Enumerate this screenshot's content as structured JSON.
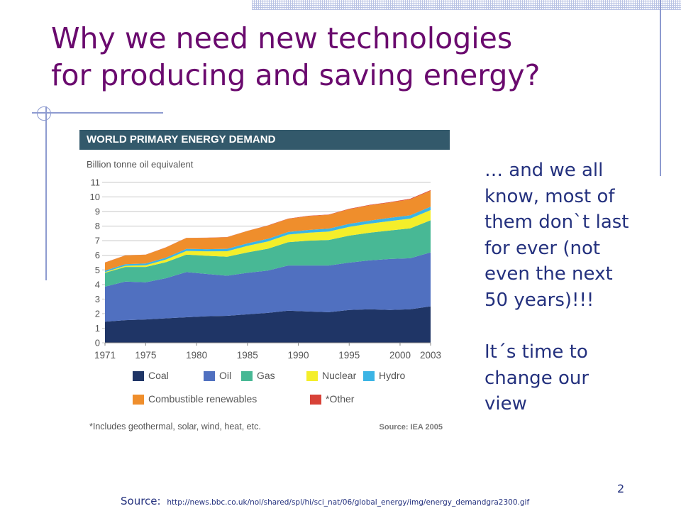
{
  "slide": {
    "title_line1": "Why we need new technologies",
    "title_line2": "for producing and saving energy?",
    "page_number": "2",
    "side_text": {
      "line1": "… and we all",
      "line2": "know, most of",
      "line3": "them don`t last",
      "line4": "for ever (not",
      "line5": "even the next",
      "line6": "50 years)!!!",
      "line7": "It´s time to",
      "line8": "change our",
      "line9": "view"
    },
    "source_label": "Source:",
    "source_url": "http://news.bbc.co.uk/nol/shared/spl/hi/sci_nat/06/global_energy/img/energy_demandgra2300.gif"
  },
  "chart_data": {
    "type": "area",
    "stacked": true,
    "title": "WORLD PRIMARY ENERGY DEMAND",
    "ylabel": "Billion tonne oil equivalent",
    "xlabel": "",
    "ylim": [
      0,
      11
    ],
    "yticks": [
      "0",
      "1",
      "2",
      "3",
      "4",
      "5",
      "6",
      "7",
      "8",
      "9",
      "10",
      "11"
    ],
    "xticks": [
      "1971",
      "1975",
      "1980",
      "1985",
      "1990",
      "1995",
      "2000",
      "2003"
    ],
    "x": [
      1971,
      1973,
      1975,
      1977,
      1979,
      1981,
      1983,
      1985,
      1987,
      1989,
      1991,
      1993,
      1995,
      1997,
      1999,
      2001,
      2003
    ],
    "series": [
      {
        "name": "Coal",
        "color": "#1f3566",
        "values": [
          1.45,
          1.55,
          1.6,
          1.68,
          1.75,
          1.82,
          1.85,
          1.95,
          2.05,
          2.2,
          2.15,
          2.1,
          2.25,
          2.3,
          2.25,
          2.3,
          2.5
        ]
      },
      {
        "name": "Oil",
        "color": "#5070c0",
        "values": [
          2.4,
          2.65,
          2.55,
          2.75,
          3.1,
          2.9,
          2.75,
          2.85,
          2.9,
          3.1,
          3.15,
          3.2,
          3.25,
          3.35,
          3.5,
          3.5,
          3.7
        ]
      },
      {
        "name": "Gas",
        "color": "#48b895",
        "values": [
          0.95,
          1.0,
          1.05,
          1.1,
          1.2,
          1.25,
          1.3,
          1.4,
          1.5,
          1.6,
          1.7,
          1.75,
          1.85,
          1.9,
          1.95,
          2.05,
          2.2
        ]
      },
      {
        "name": "Nuclear",
        "color": "#f4ee2a",
        "values": [
          0.05,
          0.08,
          0.12,
          0.18,
          0.25,
          0.3,
          0.38,
          0.45,
          0.5,
          0.52,
          0.55,
          0.58,
          0.6,
          0.62,
          0.65,
          0.67,
          0.7
        ]
      },
      {
        "name": "Hydro",
        "color": "#3bb4e5",
        "values": [
          0.1,
          0.11,
          0.12,
          0.13,
          0.14,
          0.15,
          0.16,
          0.17,
          0.18,
          0.18,
          0.19,
          0.2,
          0.21,
          0.21,
          0.22,
          0.22,
          0.23
        ]
      },
      {
        "name": "Combustible renewables",
        "color": "#ef8e2c",
        "values": [
          0.55,
          0.6,
          0.6,
          0.7,
          0.75,
          0.78,
          0.8,
          0.85,
          0.9,
          0.9,
          0.95,
          0.95,
          1.0,
          1.05,
          1.05,
          1.1,
          1.1
        ]
      },
      {
        "name": "*Other",
        "color": "#d84238",
        "values": [
          0.01,
          0.01,
          0.01,
          0.01,
          0.01,
          0.01,
          0.01,
          0.01,
          0.02,
          0.02,
          0.02,
          0.02,
          0.03,
          0.03,
          0.03,
          0.04,
          0.04
        ]
      }
    ],
    "footnote": "*Includes geothermal, solar, wind, heat, etc.",
    "source": "Source: IEA 2005",
    "grid": true,
    "legend_position": "bottom"
  }
}
